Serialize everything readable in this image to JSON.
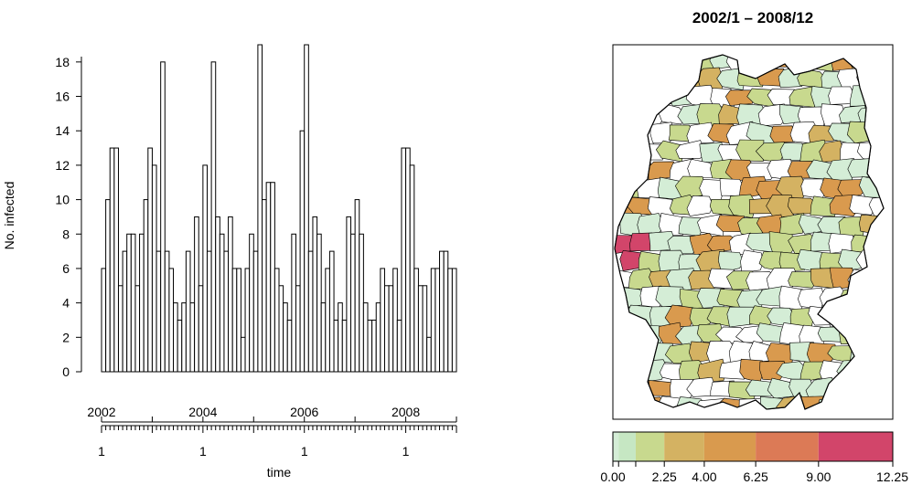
{
  "chart_data": [
    {
      "type": "bar",
      "ylabel": "No. infected",
      "xlabel": "time",
      "ylim": [
        0,
        19
      ],
      "yticks": [
        0,
        2,
        4,
        6,
        8,
        10,
        12,
        14,
        16,
        18
      ],
      "x_start": "2002/1",
      "year_labels": [
        {
          "label": "2002",
          "month_index": 0
        },
        {
          "label": "2004",
          "month_index": 24
        },
        {
          "label": "2006",
          "month_index": 48
        },
        {
          "label": "2008",
          "month_index": 72
        }
      ],
      "month_tick_labels": [
        {
          "label": "1",
          "month_index": 0
        },
        {
          "label": "1",
          "month_index": 24
        },
        {
          "label": "1",
          "month_index": 48
        },
        {
          "label": "1",
          "month_index": 72
        }
      ],
      "values": [
        6,
        10,
        13,
        13,
        5,
        7,
        8,
        8,
        5,
        8,
        10,
        13,
        12,
        7,
        18,
        7,
        6,
        4,
        3,
        4,
        7,
        4,
        9,
        5,
        12,
        7,
        18,
        9,
        8,
        7,
        9,
        6,
        6,
        2,
        6,
        8,
        7,
        19,
        10,
        11,
        11,
        6,
        5,
        4,
        3,
        8,
        5,
        14,
        19,
        7,
        9,
        8,
        4,
        6,
        7,
        3,
        4,
        3,
        9,
        8,
        10,
        8,
        4,
        3,
        3,
        4,
        6,
        5,
        5,
        6,
        3,
        13,
        13,
        12,
        6,
        5,
        5,
        2,
        6,
        6,
        7,
        7,
        6,
        6
      ]
    },
    {
      "type": "heatmap",
      "title": "2002/1 – 2008/12",
      "legend": {
        "tick_labels": [
          "0.00",
          "2.25",
          "4.00",
          "6.25",
          "9.00",
          "12.25"
        ],
        "breaks": [
          0,
          0.25,
          1,
          2.25,
          4,
          6.25,
          9,
          12.25
        ],
        "colors": [
          "#d4edd6",
          "#c8d98e",
          "#d4b262",
          "#d99a4e",
          "#dc7a56",
          "#d2456a"
        ]
      }
    }
  ]
}
